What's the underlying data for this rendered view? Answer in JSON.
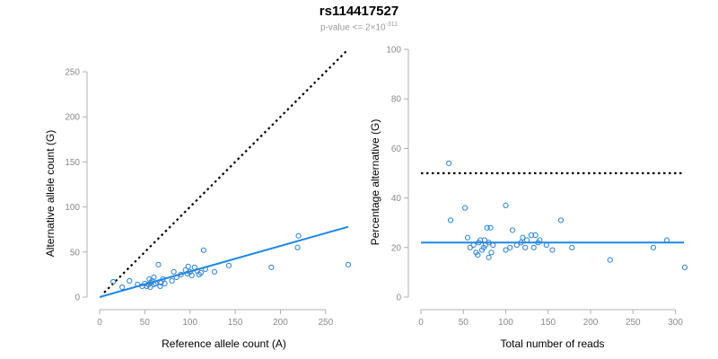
{
  "title": "rs114417527",
  "subtitle": {
    "prefix": "p-value <= 2×10",
    "exponent": "-311"
  },
  "colors": {
    "points": "#2b83d4",
    "fit": "#1e88e5",
    "reference": "#000000",
    "axis": "#b0b0b0",
    "tick_text": "#8a8a8a"
  },
  "chart_data": [
    {
      "type": "scatter",
      "name": "allele-counts",
      "xlabel": "Reference allele count (A)",
      "ylabel": "Alternative allele count (G)",
      "xlim": [
        0,
        275
      ],
      "ylim": [
        0,
        250
      ],
      "xticks": [
        0,
        50,
        100,
        150,
        200,
        250
      ],
      "yticks": [
        0,
        50,
        100,
        150,
        200,
        250
      ],
      "reference_line": {
        "style": "dotted",
        "from": [
          5,
          5
        ],
        "to": [
          275,
          275
        ]
      },
      "fit_line": {
        "from": [
          0,
          0
        ],
        "to": [
          275,
          78
        ]
      },
      "points": [
        [
          15,
          17
        ],
        [
          25,
          11
        ],
        [
          33,
          18
        ],
        [
          42,
          14
        ],
        [
          47,
          12
        ],
        [
          50,
          15
        ],
        [
          52,
          12
        ],
        [
          54,
          14
        ],
        [
          55,
          20
        ],
        [
          56,
          11
        ],
        [
          57,
          16
        ],
        [
          58,
          18
        ],
        [
          60,
          14
        ],
        [
          60,
          22
        ],
        [
          62,
          15
        ],
        [
          65,
          36
        ],
        [
          67,
          12
        ],
        [
          68,
          16
        ],
        [
          70,
          20
        ],
        [
          72,
          15
        ],
        [
          80,
          18
        ],
        [
          82,
          28
        ],
        [
          85,
          22
        ],
        [
          90,
          25
        ],
        [
          95,
          30
        ],
        [
          97,
          26
        ],
        [
          98,
          34
        ],
        [
          100,
          28
        ],
        [
          102,
          24
        ],
        [
          105,
          33
        ],
        [
          108,
          29
        ],
        [
          110,
          25
        ],
        [
          112,
          27
        ],
        [
          115,
          52
        ],
        [
          117,
          31
        ],
        [
          127,
          28
        ],
        [
          143,
          35
        ],
        [
          190,
          33
        ],
        [
          219,
          55
        ],
        [
          220,
          68
        ],
        [
          275,
          36
        ]
      ]
    },
    {
      "type": "scatter",
      "name": "percentage-alternative",
      "xlabel": "Total number of reads",
      "ylabel": "Percentage alternative (G)",
      "xlim": [
        0,
        310
      ],
      "ylim": [
        0,
        100
      ],
      "xticks": [
        0,
        50,
        100,
        150,
        200,
        250,
        300
      ],
      "yticks": [
        0,
        20,
        40,
        60,
        80,
        100
      ],
      "reference_line": {
        "style": "dotted",
        "y": 50
      },
      "fit_line": {
        "y": 22
      },
      "points": [
        [
          33,
          54
        ],
        [
          35,
          31
        ],
        [
          52,
          36
        ],
        [
          55,
          24
        ],
        [
          58,
          20
        ],
        [
          62,
          21
        ],
        [
          65,
          18
        ],
        [
          67,
          17
        ],
        [
          68,
          22
        ],
        [
          70,
          23
        ],
        [
          72,
          19
        ],
        [
          74,
          20
        ],
        [
          75,
          23
        ],
        [
          76,
          21
        ],
        [
          78,
          28
        ],
        [
          80,
          22
        ],
        [
          80,
          16
        ],
        [
          82,
          28
        ],
        [
          83,
          18
        ],
        [
          85,
          21
        ],
        [
          100,
          37
        ],
        [
          100,
          19
        ],
        [
          105,
          20
        ],
        [
          108,
          27
        ],
        [
          113,
          21
        ],
        [
          118,
          22
        ],
        [
          120,
          24
        ],
        [
          123,
          20
        ],
        [
          125,
          23
        ],
        [
          130,
          25
        ],
        [
          133,
          20
        ],
        [
          135,
          25
        ],
        [
          138,
          22
        ],
        [
          140,
          23
        ],
        [
          148,
          21
        ],
        [
          155,
          19
        ],
        [
          165,
          31
        ],
        [
          178,
          20
        ],
        [
          223,
          15
        ],
        [
          274,
          20
        ],
        [
          290,
          23
        ],
        [
          311,
          12
        ]
      ]
    }
  ]
}
